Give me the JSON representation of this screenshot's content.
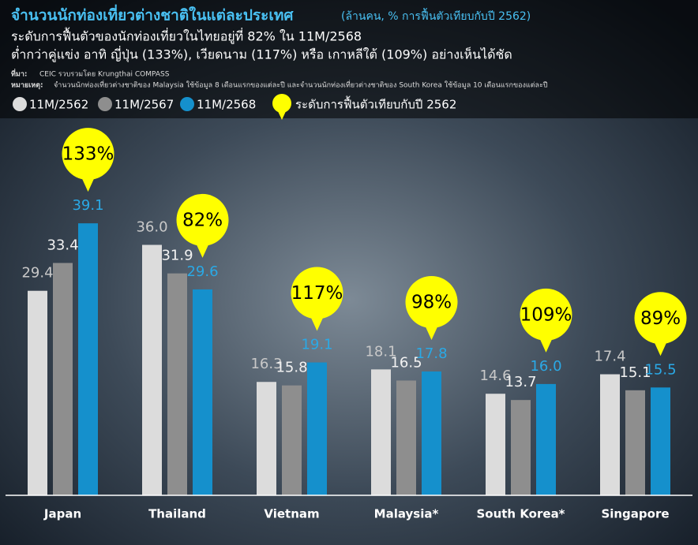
{
  "chart_data": {
    "type": "bar",
    "title": "จำนวนนักท่องเที่ยวต่างชาติในแต่ละประเทศ",
    "units": "(ล้านคน, % การฟื้นตัวเทียบกับปี 2562)",
    "subtitle": [
      "ระดับการฟื้นตัวของนักท่องเที่ยวในไทยอยู่ที่ 82% ใน 11M/2568",
      "ต่ำกว่าคู่แข่ง อาทิ ญี่ปุ่น (133%), เวียดนาม (117%) หรือ เกาหลีใต้ (109%) อย่างเห็นได้ชัด"
    ],
    "source_label": "ที่มา:",
    "source": "CEIC รวบรวมโดย Krungthai COMPASS",
    "note_label": "หมายเหตุ:",
    "note": "จำนวนนักท่องเที่ยวต่างชาติของ Malaysia ใช้ข้อมูล 8 เดือนแรกของแต่ละปี และจำนวนนักท่องเที่ยวต่างชาติของ South Korea ใช้ข้อมูล 10 เดือนแรกของแต่ละปี",
    "categories": [
      "Japan",
      "Thailand",
      "Vietnam",
      "Malaysia*",
      "South Korea*",
      "Singapore"
    ],
    "series": [
      {
        "name": "11M/2562",
        "color": "#dcdcdc",
        "label_color": "#c8c8c8",
        "values": [
          29.4,
          36.0,
          16.3,
          18.1,
          14.6,
          17.4
        ],
        "value_labels": [
          "29.4",
          "36.0",
          "16.3",
          "18.1",
          "14.6",
          "17.4"
        ]
      },
      {
        "name": "11M/2567",
        "color": "#8e8e8e",
        "label_color": "#f2f2f2",
        "values": [
          33.4,
          31.9,
          15.8,
          16.5,
          13.7,
          15.1
        ],
        "value_labels": [
          "33.4",
          "31.9",
          "15.8",
          "16.5",
          "13.7",
          "15.1"
        ]
      },
      {
        "name": "11M/2568",
        "color": "#1590cc",
        "label_color": "#2aa9e6",
        "values": [
          39.1,
          29.6,
          19.1,
          17.8,
          16.0,
          15.5
        ],
        "value_labels": [
          "39.1",
          "29.6",
          "19.1",
          "17.8",
          "16.0",
          "15.5"
        ]
      }
    ],
    "recovery": {
      "name": "ระดับการฟื้นตัวเทียบกับปี 2562",
      "color": "#ffff00",
      "values": [
        133,
        82,
        117,
        98,
        109,
        89
      ],
      "value_labels": [
        "133%",
        "82%",
        "117%",
        "98%",
        "109%",
        "89%"
      ]
    },
    "ylim": [
      0,
      50
    ]
  }
}
